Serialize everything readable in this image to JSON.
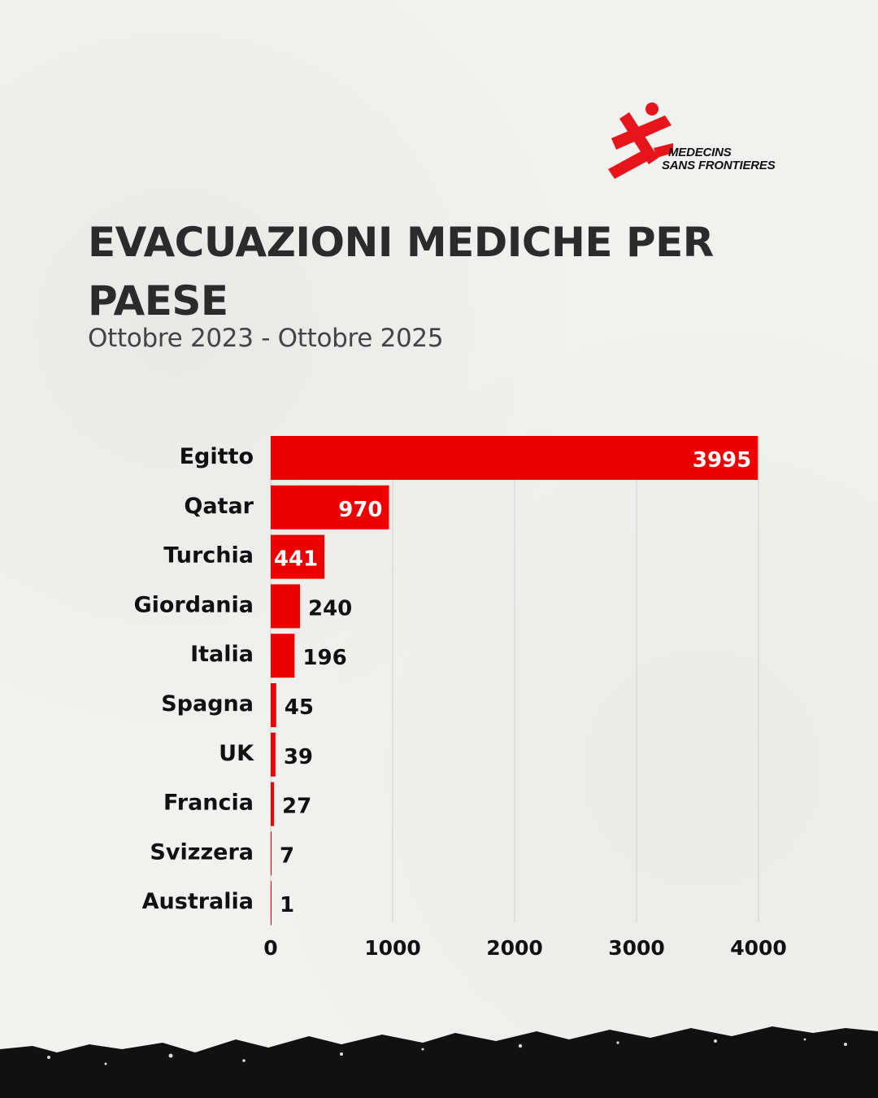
{
  "header": {
    "title": "EVACUAZIONI MEDICHE PER PAESE",
    "subtitle": "Ottobre 2023 - Ottobre 2025"
  },
  "logo": {
    "line1": "MEDECINS",
    "line2": "SANS FRONTIERES",
    "color": "#e8141b"
  },
  "colors": {
    "bar": "#ee0000",
    "grid": "#cfcfcf",
    "text": "#111111",
    "label_on_bar": "#ffffff"
  },
  "chart_data": {
    "type": "bar",
    "orientation": "horizontal",
    "categories": [
      "Egitto",
      "Qatar",
      "Turchia",
      "Giordania",
      "Italia",
      "Spagna",
      "UK",
      "Francia",
      "Svizzera",
      "Australia"
    ],
    "values": [
      3995,
      970,
      441,
      240,
      196,
      45,
      39,
      27,
      7,
      1
    ],
    "xticks": [
      0,
      1000,
      2000,
      3000,
      4000
    ],
    "xlim": [
      0,
      4000
    ],
    "title": "",
    "xlabel": "",
    "ylabel": "",
    "grid": true,
    "legend": "none"
  }
}
